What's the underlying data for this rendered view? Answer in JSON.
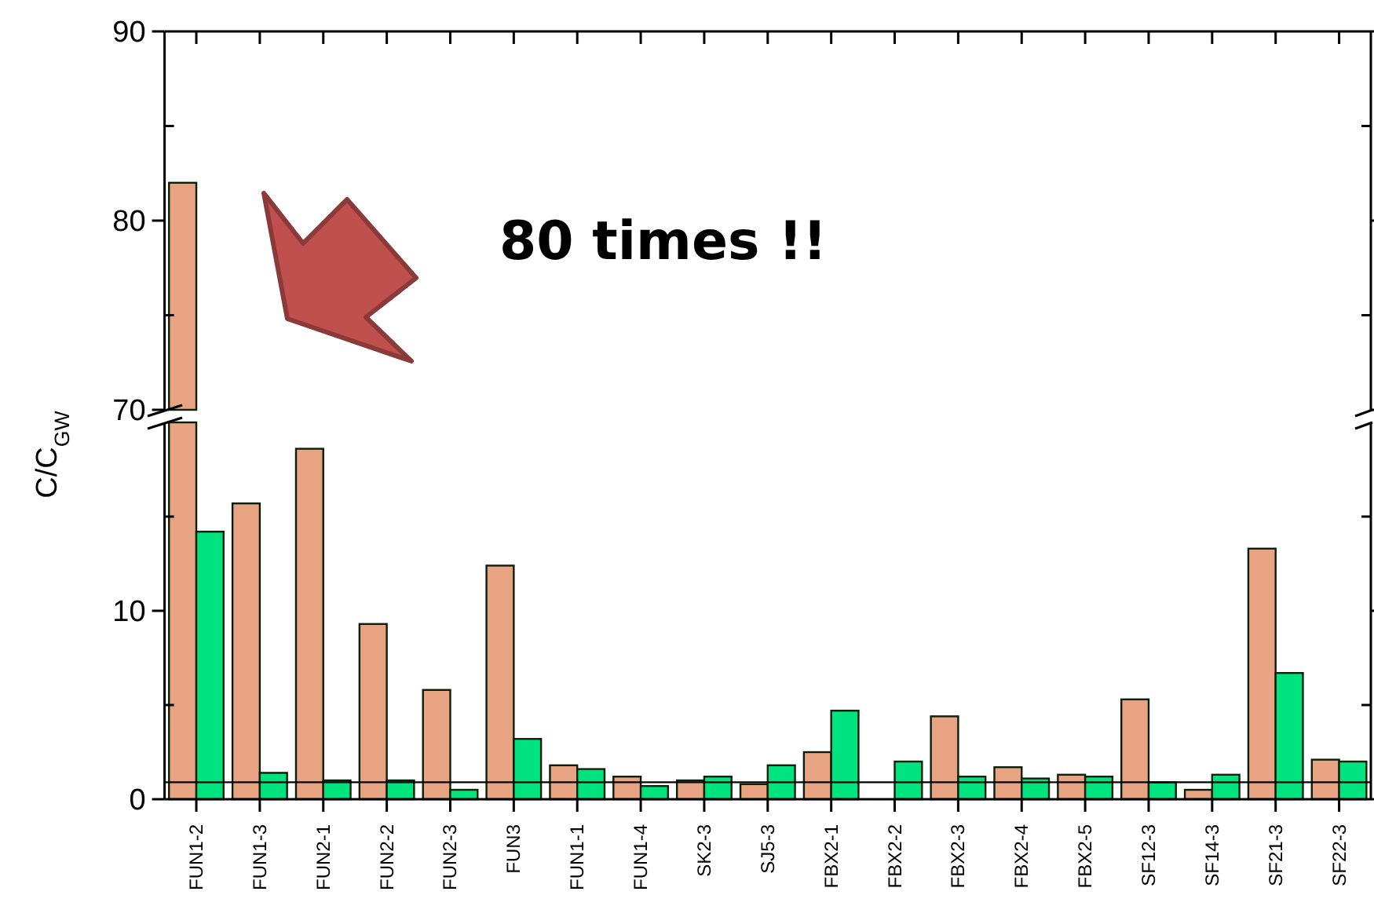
{
  "chart_data": [
    {
      "type": "bar",
      "categories": [
        null,
        null,
        null,
        null,
        null,
        null,
        null,
        null,
        null,
        null,
        null,
        null,
        null,
        null,
        null,
        null,
        null,
        null,
        null
      ],
      "series": [
        {
          "color": "#e8a482",
          "values": [
            82,
            null,
            null,
            null,
            null,
            null,
            null,
            null,
            null,
            null,
            null,
            null,
            null,
            null,
            null,
            null,
            null,
            null,
            null
          ]
        }
      ],
      "ylim": [
        70,
        90
      ],
      "yticks": [
        70,
        {
          "value": 75,
          "label": null
        },
        80,
        {
          "value": 85,
          "label": null
        },
        90
      ],
      "grid": false,
      "annotations": [
        "80 times !!"
      ]
    },
    {
      "type": "bar",
      "categories": [
        "FUN1-2",
        "FUN1-3",
        "FUN2-1",
        "FUN2-2",
        "FUN2-3",
        "FUN3",
        "FUN1-1",
        "FUN1-4",
        "SK2-3",
        "SJ5-3",
        "FBX2-1",
        "FBX2-2",
        "FBX2-3",
        "FBX2-4",
        "FBX2-5",
        "SF12-3",
        "SF14-3",
        "SF21-3",
        "SF22-3"
      ],
      "series": [
        {
          "color": "#e8a482",
          "values": [
            null,
            15.7,
            18.6,
            9.3,
            5.8,
            12.4,
            1.8,
            1.2,
            1.0,
            0.8,
            2.5,
            null,
            4.4,
            1.7,
            1.3,
            5.3,
            0.5,
            13.3,
            2.1
          ]
        },
        {
          "color": "#00e37f",
          "values": [
            14.2,
            1.4,
            1.0,
            1.0,
            0.5,
            3.2,
            1.6,
            0.7,
            1.2,
            1.8,
            4.7,
            2.0,
            1.2,
            1.1,
            1.2,
            0.9,
            1.3,
            6.7,
            2.0
          ]
        }
      ],
      "ylim": [
        0,
        20
      ],
      "yticks": [
        0,
        {
          "value": 5,
          "label": null
        },
        10,
        {
          "value": 15,
          "label": null
        }
      ],
      "grid": false,
      "ylabel": "C/C$_{GW}$",
      "ref_lines": [
        {
          "axis": "y",
          "value": 0.9,
          "color": "#000000"
        }
      ]
    }
  ]
}
